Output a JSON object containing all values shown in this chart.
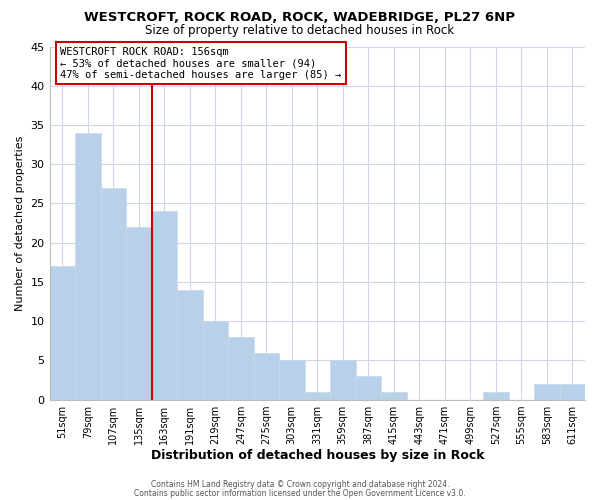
{
  "title1": "WESTCROFT, ROCK ROAD, ROCK, WADEBRIDGE, PL27 6NP",
  "title2": "Size of property relative to detached houses in Rock",
  "xlabel": "Distribution of detached houses by size in Rock",
  "ylabel": "Number of detached properties",
  "bar_labels": [
    "51sqm",
    "79sqm",
    "107sqm",
    "135sqm",
    "163sqm",
    "191sqm",
    "219sqm",
    "247sqm",
    "275sqm",
    "303sqm",
    "331sqm",
    "359sqm",
    "387sqm",
    "415sqm",
    "443sqm",
    "471sqm",
    "499sqm",
    "527sqm",
    "555sqm",
    "583sqm",
    "611sqm"
  ],
  "bar_values": [
    17,
    34,
    27,
    22,
    24,
    14,
    10,
    8,
    6,
    5,
    1,
    5,
    3,
    1,
    0,
    0,
    0,
    1,
    0,
    2,
    2
  ],
  "bar_color": "#b8d0e8",
  "bar_edge_color": "#c8d8ec",
  "marker_line_color": "#cc0000",
  "annotation_line1": "WESTCROFT ROCK ROAD: 156sqm",
  "annotation_line2": "← 53% of detached houses are smaller (94)",
  "annotation_line3": "47% of semi-detached houses are larger (85) →",
  "annotation_box_edge": "#cc0000",
  "ylim": [
    0,
    45
  ],
  "yticks": [
    0,
    5,
    10,
    15,
    20,
    25,
    30,
    35,
    40,
    45
  ],
  "footnote1": "Contains HM Land Registry data © Crown copyright and database right 2024.",
  "footnote2": "Contains public sector information licensed under the Open Government Licence v3.0.",
  "bg_color": "#ffffff",
  "grid_color": "#ccd8e8",
  "fig_width": 6.0,
  "fig_height": 5.0
}
